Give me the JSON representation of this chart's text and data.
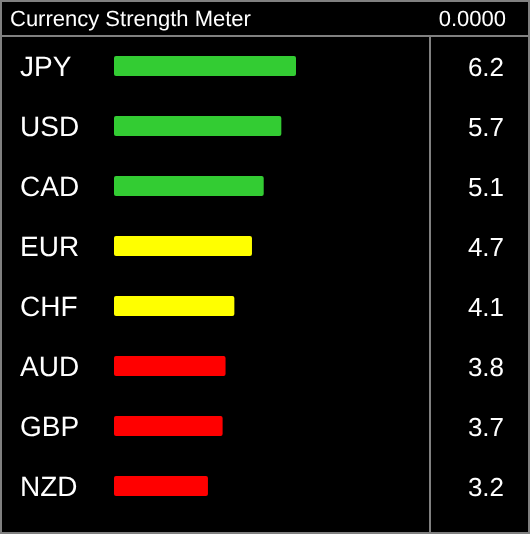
{
  "chart_data": {
    "type": "bar",
    "orientation": "horizontal",
    "title": "Currency Strength Meter",
    "annotations": [
      "0.0000"
    ],
    "categories": [
      "JPY",
      "USD",
      "CAD",
      "EUR",
      "CHF",
      "AUD",
      "GBP",
      "NZD"
    ],
    "values": [
      6.2,
      5.7,
      5.1,
      4.7,
      4.1,
      3.8,
      3.7,
      3.2
    ],
    "colors": [
      "#33cc33",
      "#33cc33",
      "#33cc33",
      "#ffff00",
      "#ffff00",
      "#ff0000",
      "#ff0000",
      "#ff0000"
    ],
    "data_labels": true
  }
}
